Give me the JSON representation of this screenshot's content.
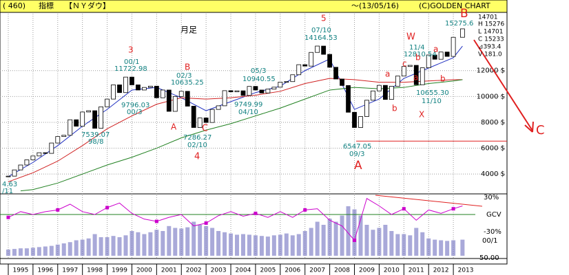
{
  "header": {
    "code": "( 460)",
    "label": "指標",
    "name": "【ＮＹダウ】",
    "date": "～(13/05/16)",
    "brand": "(C)GOLDEN CHART"
  },
  "chart_data": {
    "type": "candlestick",
    "period": "月足",
    "x": [
      1995,
      1995.25,
      1995.5,
      1995.75,
      1996,
      1996.25,
      1996.5,
      1996.75,
      1997,
      1997.25,
      1997.5,
      1997.75,
      1998,
      1998.25,
      1998.5,
      1998.75,
      1999,
      1999.25,
      1999.5,
      1999.75,
      2000,
      2000.25,
      2000.5,
      2000.75,
      2001,
      2001.25,
      2001.5,
      2001.75,
      2002,
      2002.25,
      2002.5,
      2002.75,
      2003,
      2003.25,
      2003.5,
      2003.75,
      2004,
      2004.25,
      2004.5,
      2004.75,
      2005,
      2005.25,
      2005.5,
      2005.75,
      2006,
      2006.25,
      2006.5,
      2006.75,
      2007,
      2007.25,
      2007.5,
      2007.75,
      2008,
      2008.25,
      2008.5,
      2008.75,
      2009,
      2009.25,
      2009.5,
      2009.75,
      2010,
      2010.25,
      2010.5,
      2010.75,
      2011,
      2011.25,
      2011.5,
      2011.75,
      2012,
      2012.25,
      2012.5,
      2012.75,
      2013,
      2013.37
    ],
    "values": [
      3840,
      4320,
      4700,
      5100,
      5400,
      5650,
      5600,
      6400,
      6900,
      7000,
      8200,
      7700,
      8800,
      8900,
      7540,
      9200,
      9800,
      10900,
      10300,
      11500,
      10900,
      10500,
      10700,
      10800,
      9900,
      10500,
      8850,
      10000,
      10400,
      9250,
      7600,
      8340,
      7990,
      9000,
      9280,
      10450,
      10360,
      10440,
      10080,
      10780,
      10500,
      10270,
      10570,
      10720,
      11110,
      11150,
      11680,
      12460,
      12350,
      13410,
      13900,
      13260,
      12260,
      11350,
      10850,
      8780,
      7600,
      8450,
      9710,
      10430,
      10860,
      9770,
      10790,
      11580,
      12320,
      12410,
      10910,
      12220,
      13210,
      12880,
      13440,
      13100,
      14580,
      15233
    ],
    "series": [
      {
        "color": "#2030c0",
        "x": [
          1995,
          1996,
          1997,
          1998,
          1999,
          2000,
          2001,
          2002,
          2003,
          2004,
          2005,
          2006,
          2007,
          2008,
          2009,
          2010,
          2011,
          2012,
          2013,
          2013.37
        ],
        "values": [
          3800,
          4900,
          6200,
          7700,
          9000,
          10500,
          10700,
          9900,
          8900,
          9600,
          10300,
          10800,
          12000,
          12900,
          9000,
          9800,
          11400,
          12200,
          13000,
          13900
        ]
      },
      {
        "color": "#d02020",
        "x": [
          1995,
          1996,
          1997,
          1998,
          1999,
          2000,
          2001,
          2002,
          2003,
          2004,
          2005,
          2006,
          2007,
          2008,
          2009,
          2010,
          2011,
          2012,
          2013,
          2013.37
        ],
        "values": [
          3400,
          4100,
          5000,
          6200,
          7500,
          8500,
          9400,
          9900,
          9800,
          9900,
          10100,
          10400,
          11000,
          11400,
          11300,
          11100,
          11100,
          11200,
          11300,
          11300
        ]
      },
      {
        "color": "#208020",
        "x": [
          1995.5,
          1996,
          1997,
          1998,
          1999,
          2000,
          2001,
          2002,
          2003,
          2004,
          2005,
          2006,
          2007,
          2008,
          2009,
          2010,
          2011,
          2012,
          2013,
          2013.37
        ],
        "values": [
          2700,
          2800,
          3300,
          4000,
          4700,
          5300,
          6000,
          6800,
          7400,
          7900,
          8500,
          9100,
          9800,
          10500,
          10700,
          10600,
          10700,
          11000,
          11200,
          11300
        ]
      }
    ],
    "xlim": [
      1994.666,
      2015.17
    ],
    "ylim": [
      2520,
      16400
    ],
    "xticks": [
      1995,
      1996,
      1997,
      1998,
      1999,
      2000,
      2001,
      2002,
      2003,
      2004,
      2005,
      2006,
      2007,
      2008,
      2009,
      2010,
      2011,
      2012,
      2013
    ],
    "yticks": [
      {
        "value": 4000,
        "label": "4000 $"
      },
      {
        "value": 6000,
        "label": "6000 $"
      },
      {
        "value": 8000,
        "label": "8000 $"
      },
      {
        "value": 10000,
        "label": "10000 $"
      },
      {
        "value": 12000,
        "label": "12000 $"
      }
    ],
    "grid": true,
    "info": [
      "14701",
      "H 15276",
      "L 14701",
      "C 15233",
      "⊿393.4",
      "V 181.0"
    ],
    "annotations": [
      "3",
      "00/1",
      "11722.98",
      "B",
      "02/3",
      "10635.25",
      "9796.03",
      "00/3",
      "7539.07",
      "98/8",
      "A",
      "C",
      "7286.27",
      "02/10",
      "4",
      "5",
      "07/10",
      "14164.53",
      "05/3",
      "10940.55",
      "9749.99",
      "04/10",
      "6547.05",
      "09/3",
      "A",
      "W",
      "11/4",
      "12810.54",
      "a",
      "c",
      "a",
      "b",
      "b",
      "X",
      "10655.30",
      "11/10",
      "a",
      "b",
      "B",
      "15275.6",
      "C",
      "4.63",
      "/11"
    ],
    "oscillator": {
      "name": "GCV",
      "color": "#cc00cc",
      "ylim": [
        -48,
        36
      ],
      "yticks": [
        {
          "value": 30,
          "label": "30%"
        },
        {
          "value": -30,
          "label": "-30%"
        }
      ],
      "x": [
        1995,
        1995.5,
        1996,
        1996.5,
        1997,
        1997.5,
        1998,
        1998.5,
        1999,
        1999.5,
        2000,
        2000.5,
        2001,
        2001.5,
        2002,
        2002.5,
        2003,
        2003.5,
        2004,
        2004.5,
        2005,
        2005.5,
        2006,
        2006.5,
        2007,
        2007.5,
        2008,
        2008.5,
        2009,
        2009.5,
        2010,
        2010.5,
        2011,
        2011.5,
        2012,
        2012.5,
        2013,
        2013.37
      ],
      "values": [
        -5,
        5,
        0,
        5,
        8,
        18,
        5,
        0,
        12,
        20,
        2,
        -8,
        -12,
        -5,
        0,
        -20,
        -15,
        -2,
        5,
        -3,
        2,
        -5,
        5,
        -5,
        8,
        10,
        -10,
        -20,
        -45,
        28,
        15,
        0,
        10,
        -10,
        8,
        2,
        10,
        15
      ]
    },
    "volume": {
      "color": "#7070c0",
      "ylim": [
        0,
        100
      ],
      "labels": [
        "00/1",
        "50.00"
      ],
      "values": [
        10,
        11,
        12,
        12,
        13,
        14,
        15,
        16,
        18,
        20,
        22,
        25,
        26,
        28,
        35,
        30,
        30,
        32,
        30,
        33,
        40,
        38,
        35,
        38,
        42,
        40,
        48,
        45,
        44,
        46,
        55,
        50,
        48,
        45,
        40,
        38,
        36,
        34,
        35,
        34,
        33,
        32,
        31,
        33,
        34,
        36,
        33,
        35,
        40,
        45,
        55,
        50,
        60,
        55,
        65,
        80,
        75,
        65,
        50,
        42,
        45,
        50,
        40,
        35,
        35,
        33,
        45,
        38,
        28,
        26,
        25,
        24,
        25,
        26
      ]
    }
  }
}
